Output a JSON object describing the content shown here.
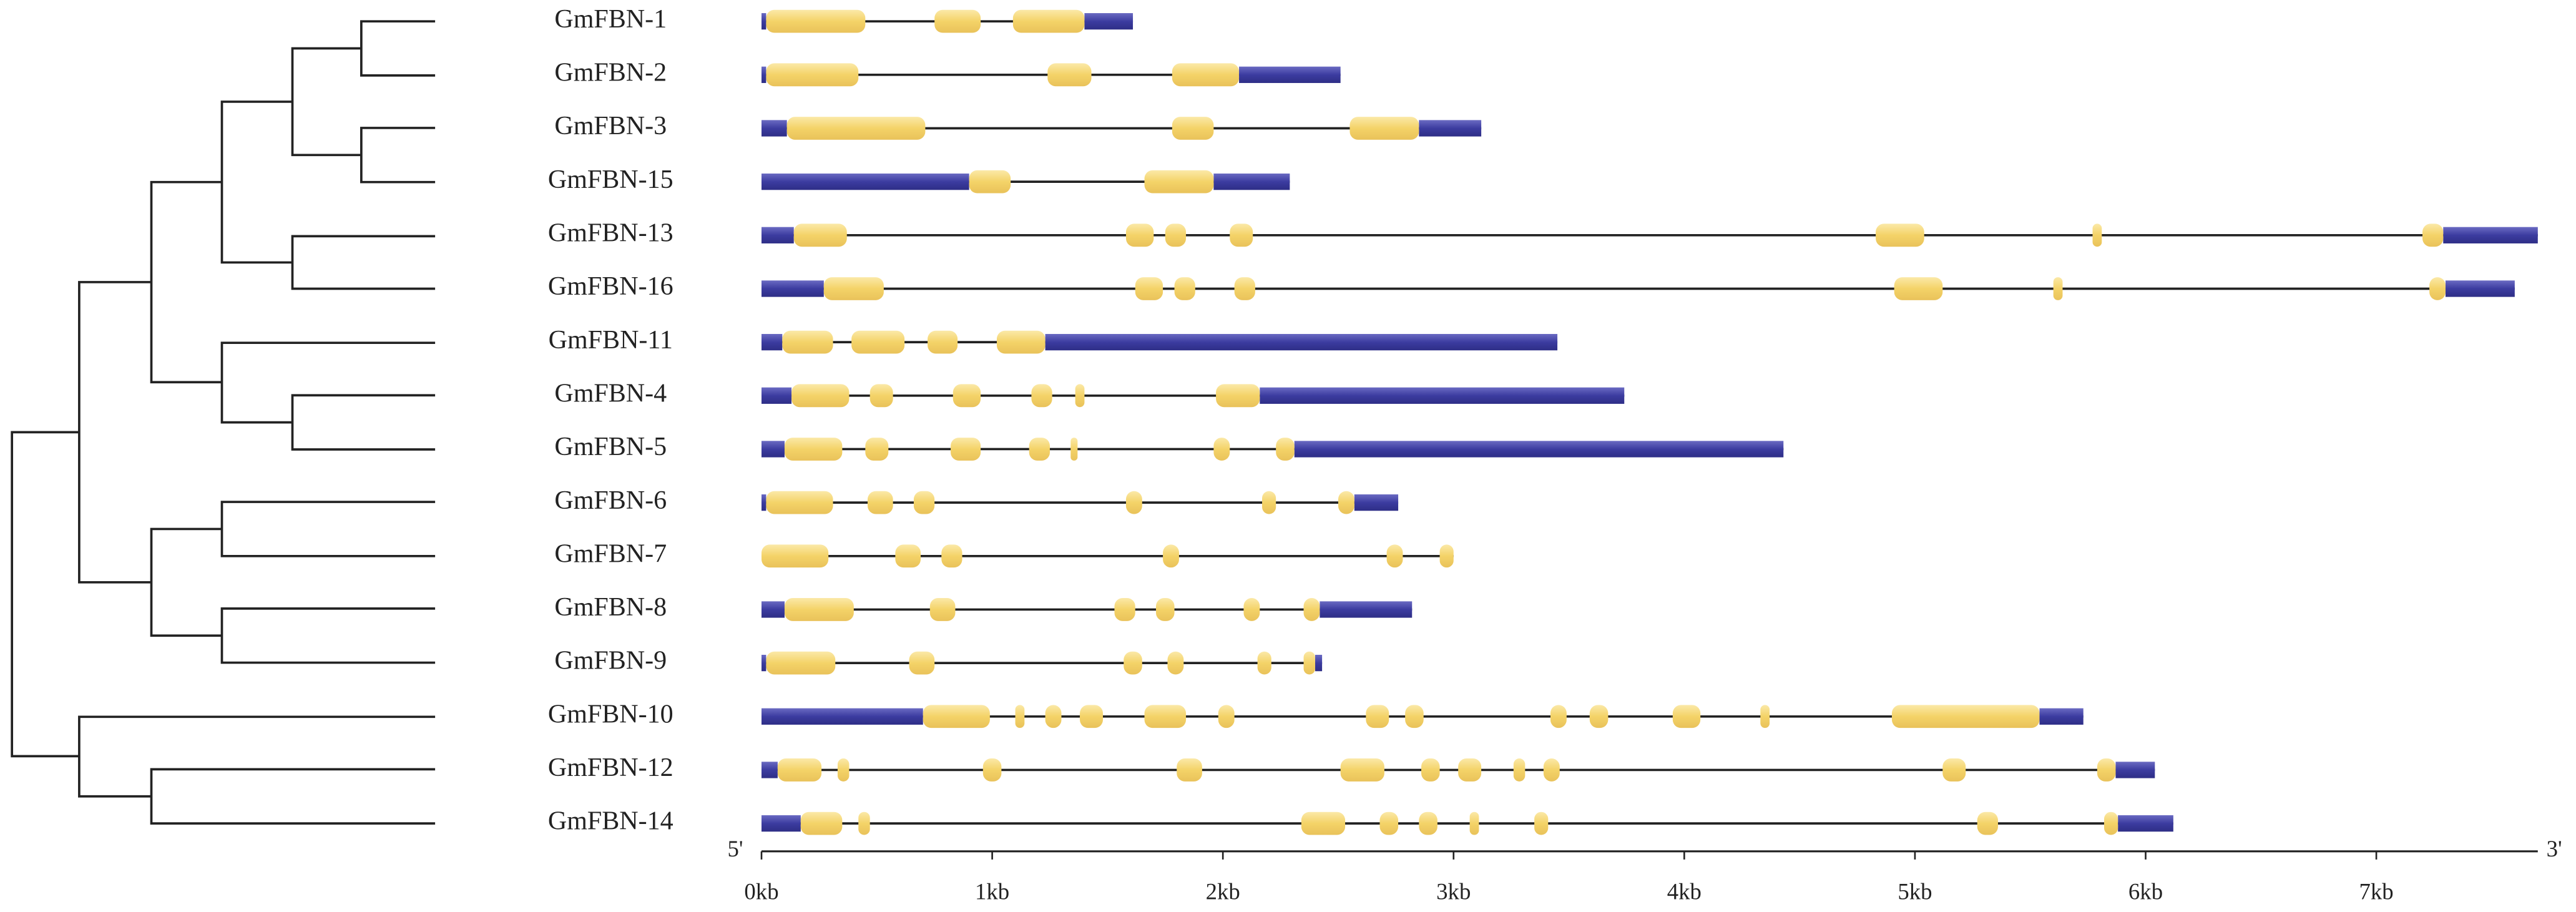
{
  "genes": [
    {
      "name": "GmFBN-1",
      "length": 1.61,
      "utr": [
        [
          0,
          0.02
        ],
        [
          1.4,
          1.61
        ]
      ],
      "cds": [
        [
          0.02,
          0.45
        ],
        [
          0.75,
          0.95
        ],
        [
          1.09,
          1.4
        ]
      ]
    },
    {
      "name": "GmFBN-2",
      "length": 2.51,
      "utr": [
        [
          0,
          0.02
        ],
        [
          2.07,
          2.51
        ]
      ],
      "cds": [
        [
          0.02,
          0.42
        ],
        [
          1.24,
          1.43
        ],
        [
          1.78,
          2.07
        ]
      ]
    },
    {
      "name": "GmFBN-3",
      "length": 3.12,
      "utr": [
        [
          0,
          0.11
        ],
        [
          2.85,
          3.12
        ]
      ],
      "cds": [
        [
          0.11,
          0.71
        ],
        [
          1.78,
          1.96
        ],
        [
          2.55,
          2.85
        ]
      ]
    },
    {
      "name": "GmFBN-15",
      "length": 2.29,
      "utr": [
        [
          0,
          0.9
        ],
        [
          1.96,
          2.29
        ]
      ],
      "cds": [
        [
          0.9,
          1.08
        ],
        [
          1.66,
          1.96
        ]
      ]
    },
    {
      "name": "GmFBN-13",
      "length": 7.7,
      "utr": [
        [
          0,
          0.14
        ],
        [
          7.29,
          7.7
        ]
      ],
      "cds": [
        [
          0.14,
          0.37
        ],
        [
          1.58,
          1.7
        ],
        [
          1.75,
          1.84
        ],
        [
          2.03,
          2.13
        ],
        [
          4.83,
          5.04
        ],
        [
          5.77,
          5.81
        ],
        [
          7.2,
          7.29
        ]
      ]
    },
    {
      "name": "GmFBN-16",
      "length": 7.6,
      "utr": [
        [
          0,
          0.27
        ],
        [
          7.3,
          7.6
        ]
      ],
      "cds": [
        [
          0.27,
          0.53
        ],
        [
          1.62,
          1.74
        ],
        [
          1.79,
          1.88
        ],
        [
          2.05,
          2.14
        ],
        [
          4.91,
          5.12
        ],
        [
          5.6,
          5.64
        ],
        [
          7.23,
          7.3
        ]
      ]
    },
    {
      "name": "GmFBN-11",
      "length": 3.45,
      "utr": [
        [
          0,
          0.09
        ],
        [
          1.23,
          3.45
        ]
      ],
      "cds": [
        [
          0.09,
          0.31
        ],
        [
          0.39,
          0.62
        ],
        [
          0.72,
          0.85
        ],
        [
          1.02,
          1.23
        ]
      ]
    },
    {
      "name": "GmFBN-4",
      "length": 3.74,
      "utr": [
        [
          0,
          0.13
        ],
        [
          2.16,
          3.74
        ]
      ],
      "cds": [
        [
          0.13,
          0.38
        ],
        [
          0.47,
          0.57
        ],
        [
          0.83,
          0.95
        ],
        [
          1.17,
          1.26
        ],
        [
          1.36,
          1.4
        ],
        [
          1.97,
          2.16
        ]
      ]
    },
    {
      "name": "GmFBN-5",
      "length": 4.43,
      "utr": [
        [
          0,
          0.1
        ],
        [
          2.31,
          4.43
        ]
      ],
      "cds": [
        [
          0.1,
          0.35
        ],
        [
          0.45,
          0.55
        ],
        [
          0.82,
          0.95
        ],
        [
          1.16,
          1.25
        ],
        [
          1.34,
          1.37
        ],
        [
          1.96,
          2.03
        ],
        [
          2.23,
          2.31
        ]
      ]
    },
    {
      "name": "GmFBN-6",
      "length": 2.76,
      "utr": [
        [
          0,
          0.02
        ],
        [
          2.57,
          2.76
        ]
      ],
      "cds": [
        [
          0.02,
          0.31
        ],
        [
          0.46,
          0.57
        ],
        [
          0.66,
          0.75
        ],
        [
          1.58,
          1.65
        ],
        [
          2.17,
          2.23
        ],
        [
          2.5,
          2.57
        ]
      ]
    },
    {
      "name": "GmFBN-7",
      "length": 3.0,
      "utr": [],
      "cds": [
        [
          0,
          0.29
        ],
        [
          0.58,
          0.69
        ],
        [
          0.78,
          0.87
        ],
        [
          1.74,
          1.81
        ],
        [
          2.71,
          2.78
        ],
        [
          2.94,
          3.0
        ]
      ]
    },
    {
      "name": "GmFBN-8",
      "length": 2.82,
      "utr": [
        [
          0,
          0.1
        ],
        [
          2.42,
          2.82
        ]
      ],
      "cds": [
        [
          0.1,
          0.4
        ],
        [
          0.73,
          0.84
        ],
        [
          1.53,
          1.62
        ],
        [
          1.71,
          1.79
        ],
        [
          2.09,
          2.16
        ],
        [
          2.35,
          2.42
        ]
      ]
    },
    {
      "name": "GmFBN-9",
      "length": 2.43,
      "utr": [
        [
          0,
          0.02
        ],
        [
          2.4,
          2.43
        ]
      ],
      "cds": [
        [
          0.02,
          0.32
        ],
        [
          0.64,
          0.75
        ],
        [
          1.57,
          1.65
        ],
        [
          1.76,
          1.83
        ],
        [
          2.15,
          2.21
        ],
        [
          2.35,
          2.4
        ]
      ]
    },
    {
      "name": "GmFBN-10",
      "length": 5.73,
      "utr": [
        [
          0,
          0.7
        ],
        [
          5.54,
          5.73
        ]
      ],
      "cds": [
        [
          0.7,
          0.99
        ],
        [
          1.1,
          1.14
        ],
        [
          1.23,
          1.3
        ],
        [
          1.38,
          1.48
        ],
        [
          1.66,
          1.84
        ],
        [
          1.98,
          2.05
        ],
        [
          2.62,
          2.72
        ],
        [
          2.79,
          2.87
        ],
        [
          3.42,
          3.49
        ],
        [
          3.59,
          3.67
        ],
        [
          3.95,
          4.07
        ],
        [
          4.33,
          4.37
        ],
        [
          4.9,
          5.54
        ]
      ]
    },
    {
      "name": "GmFBN-12",
      "length": 6.04,
      "utr": [
        [
          0,
          0.07
        ],
        [
          5.87,
          6.04
        ]
      ],
      "cds": [
        [
          0.07,
          0.26
        ],
        [
          0.33,
          0.38
        ],
        [
          0.96,
          1.04
        ],
        [
          1.8,
          1.91
        ],
        [
          2.51,
          2.7
        ],
        [
          2.86,
          2.94
        ],
        [
          3.02,
          3.12
        ],
        [
          3.26,
          3.31
        ],
        [
          3.39,
          3.46
        ],
        [
          5.12,
          5.22
        ],
        [
          5.79,
          5.87
        ]
      ]
    },
    {
      "name": "GmFBN-14",
      "length": 6.12,
      "utr": [
        [
          0,
          0.17
        ],
        [
          5.88,
          6.12
        ]
      ],
      "cds": [
        [
          0.17,
          0.35
        ],
        [
          0.42,
          0.47
        ],
        [
          2.34,
          2.53
        ],
        [
          2.68,
          2.76
        ],
        [
          2.85,
          2.93
        ],
        [
          3.07,
          3.11
        ],
        [
          3.35,
          3.41
        ],
        [
          5.27,
          5.36
        ],
        [
          5.82,
          5.88
        ]
      ]
    }
  ],
  "axis": {
    "xlim": [
      0,
      7.7
    ],
    "five_prime": "5'",
    "three_prime": "3'",
    "ticks": [
      {
        "value": 0,
        "label": "0kb"
      },
      {
        "value": 1,
        "label": "1kb"
      },
      {
        "value": 2,
        "label": "2kb"
      },
      {
        "value": 3,
        "label": "3kb"
      },
      {
        "value": 4,
        "label": "4kb"
      },
      {
        "value": 5,
        "label": "5kb"
      },
      {
        "value": 6,
        "label": "6kb"
      },
      {
        "value": 7,
        "label": "7kb"
      }
    ]
  }
}
